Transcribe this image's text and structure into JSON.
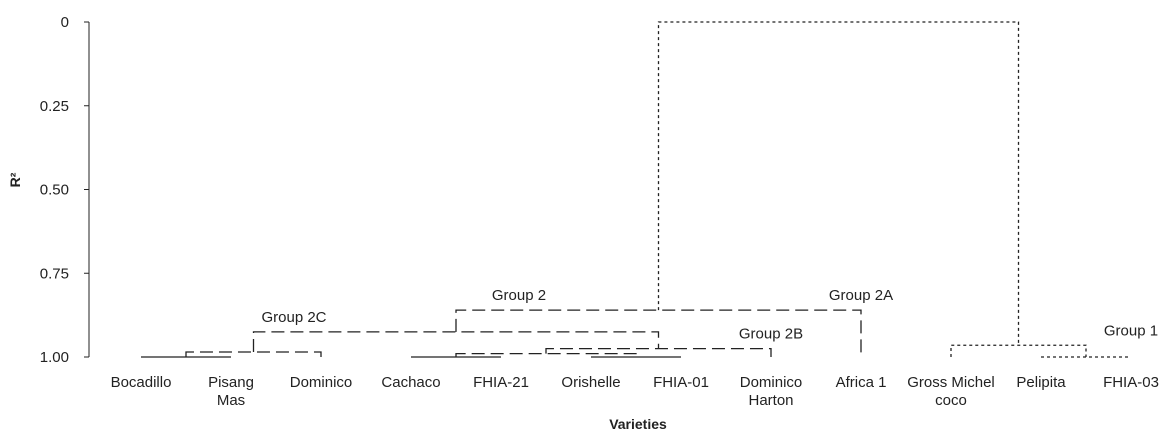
{
  "chart_data": {
    "type": "dendrogram",
    "ylabel": "R²",
    "xlabel": "Varieties",
    "yticks": [
      {
        "value": 0,
        "label": "0"
      },
      {
        "value": 0.25,
        "label": "0.25"
      },
      {
        "value": 0.5,
        "label": "0.50"
      },
      {
        "value": 0.75,
        "label": "0.75"
      },
      {
        "value": 1.0,
        "label": "1.00"
      }
    ],
    "ylim": [
      0,
      1.0
    ],
    "leaves": [
      {
        "label": [
          "Bocadillo"
        ]
      },
      {
        "label": [
          "Pisang",
          "Mas"
        ]
      },
      {
        "label": [
          "Dominico"
        ]
      },
      {
        "label": [
          "Cachaco"
        ]
      },
      {
        "label": [
          "FHIA-21"
        ]
      },
      {
        "label": [
          "Orishelle"
        ]
      },
      {
        "label": [
          "FHIA-01"
        ]
      },
      {
        "label": [
          "Dominico",
          "Harton"
        ]
      },
      {
        "label": [
          "Africa 1"
        ]
      },
      {
        "label": [
          "Gross Michel",
          "coco"
        ]
      },
      {
        "label": [
          "Pelipita"
        ]
      },
      {
        "label": [
          "FHIA-03"
        ]
      }
    ],
    "merges": [
      {
        "left": 0,
        "right": 1,
        "height": 1.0,
        "style": "solid"
      },
      {
        "left": 12,
        "right": 2,
        "height": 0.985,
        "style": "dashed"
      },
      {
        "left": 3,
        "right": 4,
        "height": 1.0,
        "style": "solid"
      },
      {
        "left": 5,
        "right": 6,
        "height": 1.0,
        "style": "solid"
      },
      {
        "left": 14,
        "right": 15,
        "height": 0.99,
        "style": "dashed"
      },
      {
        "left": 16,
        "right": 7,
        "height": 0.975,
        "style": "dashed"
      },
      {
        "left": 13,
        "right": 17,
        "height": 0.925,
        "style": "dashed"
      },
      {
        "left": 18,
        "right": 8,
        "height": 0.86,
        "style": "dashed"
      },
      {
        "left": 10,
        "right": 11,
        "height": 1.0,
        "style": "dotted"
      },
      {
        "left": 9,
        "right": 20,
        "height": 0.965,
        "style": "dotted"
      },
      {
        "left": 19,
        "right": 21,
        "height": 0.0,
        "style": "dotted"
      }
    ],
    "annotations": [
      {
        "text": "Group 2C",
        "leaf": 1.7,
        "height": 0.925
      },
      {
        "text": "Group 2",
        "leaf": 4.2,
        "height": 0.86
      },
      {
        "text": "Group 2B",
        "leaf": 7.0,
        "height": 0.975
      },
      {
        "text": "Group 2A",
        "leaf": 8.0,
        "height": 0.86
      },
      {
        "text": "Group 1",
        "leaf": 11.0,
        "height": 0.965
      }
    ]
  }
}
